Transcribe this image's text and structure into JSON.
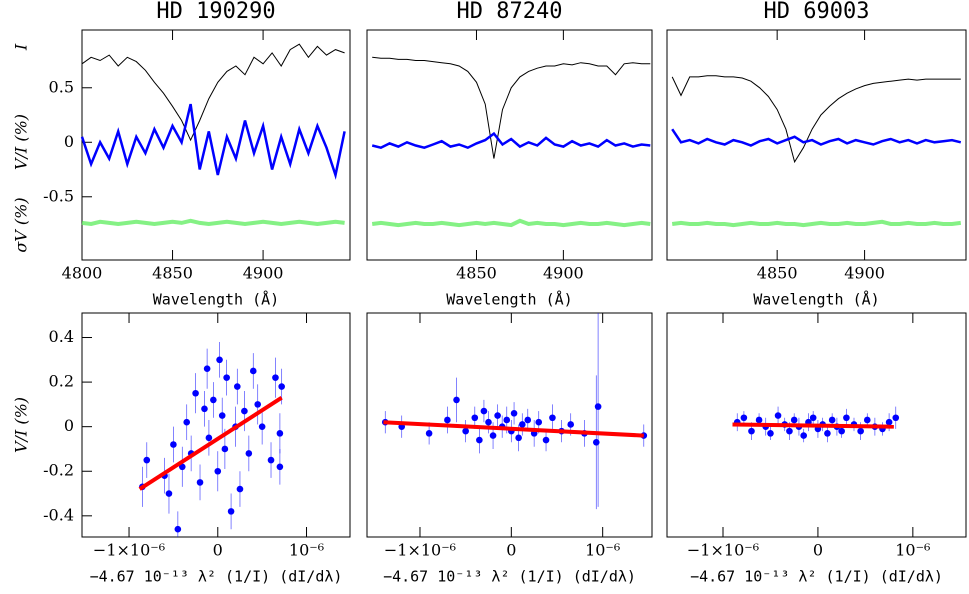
{
  "chart_data": [
    {
      "type": "line",
      "title": "HD 190290",
      "xlabel": "Wavelength (Å)",
      "ylabels": [
        "I",
        "V/I (%)",
        "σV (%)"
      ],
      "xlim": [
        4800,
        4948
      ],
      "ylim": [
        -1.08,
        1.03
      ],
      "xticks": [
        4800,
        4850,
        4900
      ],
      "yticks": [
        0.5,
        0,
        -0.5
      ],
      "x": [
        4800,
        4805,
        4810,
        4815,
        4820,
        4825,
        4830,
        4835,
        4840,
        4845,
        4850,
        4855,
        4860,
        4865,
        4870,
        4875,
        4880,
        4885,
        4890,
        4895,
        4900,
        4905,
        4910,
        4915,
        4920,
        4925,
        4930,
        4935,
        4940,
        4945
      ],
      "series": [
        {
          "color": "#000000",
          "values": [
            0.72,
            0.78,
            0.75,
            0.8,
            0.7,
            0.78,
            0.74,
            0.66,
            0.55,
            0.45,
            0.33,
            0.2,
            0.02,
            0.2,
            0.4,
            0.55,
            0.65,
            0.7,
            0.62,
            0.78,
            0.72,
            0.82,
            0.7,
            0.85,
            0.9,
            0.78,
            0.88,
            0.8,
            0.85,
            0.82
          ]
        },
        {
          "color": "#0000ff",
          "values": [
            0.05,
            -0.2,
            0.0,
            -0.15,
            0.1,
            -0.2,
            0.05,
            -0.1,
            0.12,
            -0.05,
            0.15,
            0.0,
            0.35,
            -0.25,
            0.1,
            -0.3,
            0.05,
            -0.15,
            0.2,
            -0.1,
            0.15,
            -0.25,
            0.05,
            -0.2,
            0.12,
            -0.1,
            0.15,
            -0.05,
            -0.3,
            0.1
          ]
        },
        {
          "color": "#66ee66",
          "values": [
            -0.74,
            -0.75,
            -0.73,
            -0.74,
            -0.75,
            -0.74,
            -0.73,
            -0.74,
            -0.75,
            -0.74,
            -0.73,
            -0.74,
            -0.72,
            -0.74,
            -0.75,
            -0.74,
            -0.73,
            -0.74,
            -0.75,
            -0.74,
            -0.73,
            -0.74,
            -0.75,
            -0.74,
            -0.73,
            -0.74,
            -0.75,
            -0.74,
            -0.73,
            -0.74
          ]
        }
      ]
    },
    {
      "type": "line",
      "title": "HD 87240",
      "xlabel": "Wavelength (Å)",
      "xlim": [
        4787,
        4951
      ],
      "ylim": [
        -1.08,
        1.03
      ],
      "xticks": [
        4850,
        4900
      ],
      "x": [
        4790,
        4795,
        4800,
        4805,
        4810,
        4815,
        4820,
        4825,
        4830,
        4835,
        4840,
        4845,
        4850,
        4855,
        4860,
        4865,
        4870,
        4875,
        4880,
        4885,
        4890,
        4895,
        4900,
        4905,
        4910,
        4915,
        4920,
        4925,
        4930,
        4935,
        4940,
        4945,
        4950
      ],
      "series": [
        {
          "color": "#000000",
          "values": [
            0.78,
            0.77,
            0.77,
            0.76,
            0.76,
            0.75,
            0.75,
            0.74,
            0.73,
            0.72,
            0.7,
            0.65,
            0.55,
            0.35,
            -0.15,
            0.3,
            0.5,
            0.6,
            0.65,
            0.68,
            0.7,
            0.7,
            0.72,
            0.71,
            0.73,
            0.72,
            0.7,
            0.7,
            0.62,
            0.72,
            0.73,
            0.72,
            0.72
          ]
        },
        {
          "color": "#0000ff",
          "values": [
            -0.03,
            -0.05,
            -0.01,
            -0.04,
            0.0,
            -0.03,
            -0.05,
            -0.02,
            0.01,
            -0.04,
            -0.02,
            -0.05,
            -0.01,
            0.02,
            0.08,
            -0.02,
            0.03,
            -0.04,
            0.0,
            -0.03,
            0.04,
            -0.02,
            -0.04,
            0.01,
            -0.03,
            -0.01,
            -0.04,
            0.02,
            -0.03,
            -0.01,
            -0.04,
            -0.02,
            -0.03
          ]
        },
        {
          "color": "#66ee66",
          "values": [
            -0.75,
            -0.74,
            -0.75,
            -0.76,
            -0.75,
            -0.74,
            -0.75,
            -0.75,
            -0.74,
            -0.75,
            -0.76,
            -0.75,
            -0.74,
            -0.75,
            -0.74,
            -0.75,
            -0.76,
            -0.72,
            -0.75,
            -0.74,
            -0.75,
            -0.75,
            -0.76,
            -0.75,
            -0.74,
            -0.75,
            -0.75,
            -0.74,
            -0.75,
            -0.76,
            -0.75,
            -0.74,
            -0.75
          ]
        }
      ]
    },
    {
      "type": "line",
      "title": "HD 69003",
      "xlabel": "Wavelength (Å)",
      "xlim": [
        4787,
        4958
      ],
      "ylim": [
        -1.08,
        1.03
      ],
      "xticks": [
        4850,
        4900
      ],
      "x": [
        4790,
        4795,
        4800,
        4805,
        4810,
        4815,
        4820,
        4825,
        4830,
        4835,
        4840,
        4845,
        4850,
        4855,
        4860,
        4865,
        4870,
        4875,
        4880,
        4885,
        4890,
        4895,
        4900,
        4905,
        4910,
        4915,
        4920,
        4925,
        4930,
        4935,
        4940,
        4945,
        4950,
        4955
      ],
      "series": [
        {
          "color": "#000000",
          "values": [
            0.6,
            0.43,
            0.6,
            0.6,
            0.61,
            0.61,
            0.6,
            0.6,
            0.59,
            0.56,
            0.5,
            0.42,
            0.3,
            0.12,
            -0.18,
            -0.05,
            0.12,
            0.25,
            0.33,
            0.4,
            0.45,
            0.49,
            0.52,
            0.54,
            0.55,
            0.56,
            0.57,
            0.58,
            0.57,
            0.58,
            0.58,
            0.58,
            0.58,
            0.58
          ]
        },
        {
          "color": "#0000ff",
          "values": [
            0.12,
            0.0,
            0.02,
            -0.01,
            0.03,
            0.0,
            -0.02,
            0.02,
            0.0,
            -0.03,
            0.01,
            0.03,
            -0.01,
            0.02,
            0.05,
            0.0,
            0.02,
            -0.02,
            0.01,
            0.03,
            -0.01,
            0.02,
            0.0,
            -0.02,
            0.01,
            0.03,
            0.0,
            0.02,
            -0.01,
            0.02,
            0.0,
            0.01,
            0.02,
            0.0
          ]
        },
        {
          "color": "#66ee66",
          "values": [
            -0.75,
            -0.74,
            -0.75,
            -0.75,
            -0.74,
            -0.75,
            -0.75,
            -0.76,
            -0.75,
            -0.74,
            -0.75,
            -0.75,
            -0.74,
            -0.75,
            -0.75,
            -0.76,
            -0.75,
            -0.74,
            -0.75,
            -0.75,
            -0.74,
            -0.75,
            -0.75,
            -0.74,
            -0.73,
            -0.75,
            -0.75,
            -0.74,
            -0.75,
            -0.75,
            -0.74,
            -0.75,
            -0.75,
            -0.74
          ]
        }
      ]
    },
    {
      "type": "scatter",
      "xlabel": "−4.67 10⁻¹³ λ² (1/I) (dI/dλ)",
      "ylabel": "V/I (%)",
      "color": "#0000ff",
      "xlim": [
        -1.53e-06,
        1.49e-06
      ],
      "ylim": [
        -0.495,
        0.51
      ],
      "xticks": [
        {
          "value": -1e-06,
          "label": "−1×10⁻⁶"
        },
        0,
        {
          "value": 1e-06,
          "label": "10⁻⁶"
        }
      ],
      "yticks": [
        0.4,
        0.2,
        0,
        -0.2,
        -0.4
      ],
      "x": [
        -8.5e-07,
        -8e-07,
        -6e-07,
        -5.5e-07,
        -5e-07,
        -4.5e-07,
        -4e-07,
        -3.5e-07,
        -3e-07,
        -2.5e-07,
        -2e-07,
        -1.5e-07,
        -1.2e-07,
        -1e-07,
        -5e-08,
        0,
        2e-08,
        5e-08,
        8e-08,
        1e-07,
        1.5e-07,
        2e-07,
        2.2e-07,
        2.5e-07,
        3e-07,
        3.5e-07,
        4e-07,
        4.5e-07,
        5e-07,
        6e-07,
        6.5e-07,
        7e-07,
        7.2e-07,
        7e-07
      ],
      "values": [
        -0.27,
        -0.15,
        -0.22,
        -0.3,
        -0.08,
        -0.46,
        -0.18,
        0.02,
        -0.12,
        0.15,
        -0.25,
        0.08,
        0.26,
        -0.05,
        0.12,
        -0.2,
        0.3,
        0.05,
        -0.1,
        0.22,
        -0.38,
        0.0,
        0.18,
        -0.28,
        0.07,
        -0.12,
        0.25,
        0.1,
        0.0,
        -0.15,
        0.22,
        -0.18,
        0.18,
        -0.03
      ],
      "errors": [
        0.09,
        0.08,
        0.08,
        0.09,
        0.08,
        0.08,
        0.09,
        0.08,
        0.08,
        0.09,
        0.08,
        0.08,
        0.09,
        0.08,
        0.08,
        0.09,
        0.08,
        0.08,
        0.09,
        0.08,
        0.08,
        0.09,
        0.08,
        0.08,
        0.09,
        0.08,
        0.08,
        0.09,
        0.08,
        0.08,
        0.09,
        0.08,
        0.08,
        0.09
      ],
      "fit": {
        "color": "#ff0000",
        "x": [
          -8.8e-07,
          7.2e-07
        ],
        "values": [
          -0.28,
          0.13
        ]
      }
    },
    {
      "type": "scatter",
      "xlabel": "−4.67 10⁻¹³ λ² (1/I) (dI/dλ)",
      "color": "#0000ff",
      "xlim": [
        -1.58e-06,
        1.54e-06
      ],
      "ylim": [
        -0.495,
        0.51
      ],
      "xticks": [
        {
          "value": -1e-06,
          "label": "−1×10⁻⁶"
        },
        0,
        {
          "value": 1e-06,
          "label": "10⁻⁶"
        }
      ],
      "x": [
        -1.38e-06,
        -1.2e-06,
        -9e-07,
        -7e-07,
        -6e-07,
        -5e-07,
        -4e-07,
        -3.5e-07,
        -3e-07,
        -2.5e-07,
        -2e-07,
        -1.5e-07,
        -1e-07,
        -5e-08,
        0,
        3e-08,
        8e-08,
        1.2e-07,
        1.8e-07,
        2.5e-07,
        3e-07,
        3.8e-07,
        4.5e-07,
        5.5e-07,
        6.5e-07,
        8e-07,
        9.3e-07,
        9.5e-07,
        1.45e-06
      ],
      "values": [
        0.02,
        0.0,
        -0.03,
        0.03,
        0.12,
        -0.02,
        0.04,
        -0.06,
        0.07,
        0.02,
        -0.04,
        0.05,
        0.0,
        0.03,
        -0.02,
        0.06,
        -0.05,
        0.01,
        0.03,
        -0.03,
        0.02,
        -0.06,
        0.04,
        -0.02,
        0.01,
        -0.03,
        -0.07,
        0.09,
        -0.04
      ],
      "errors": [
        0.05,
        0.05,
        0.05,
        0.06,
        0.1,
        0.05,
        0.05,
        0.06,
        0.05,
        0.05,
        0.06,
        0.05,
        0.05,
        0.06,
        0.05,
        0.05,
        0.06,
        0.05,
        0.05,
        0.06,
        0.05,
        0.05,
        0.06,
        0.05,
        0.05,
        0.06,
        0.3,
        0.45,
        0.05
      ],
      "fit": {
        "color": "#ff0000",
        "x": [
          -1.4e-06,
          1.45e-06
        ],
        "values": [
          0.02,
          -0.04
        ]
      }
    },
    {
      "type": "scatter",
      "xlabel": "−4.67 10⁻¹³ λ² (1/I) (dI/dλ)",
      "color": "#0000ff",
      "xlim": [
        -1.59e-06,
        1.56e-06
      ],
      "ylim": [
        -0.495,
        0.51
      ],
      "xticks": [
        {
          "value": -1e-06,
          "label": "−1×10⁻⁶"
        },
        0,
        {
          "value": 1e-06,
          "label": "10⁻⁶"
        }
      ],
      "x": [
        -8.5e-07,
        -7.8e-07,
        -7e-07,
        -6.2e-07,
        -5.5e-07,
        -5e-07,
        -4.2e-07,
        -3.5e-07,
        -3e-07,
        -2.5e-07,
        -2e-07,
        -1.5e-07,
        -1e-07,
        -5e-08,
        0,
        5e-08,
        1e-07,
        1.5e-07,
        2e-07,
        2.5e-07,
        3e-07,
        3.8e-07,
        4.5e-07,
        5.2e-07,
        6e-07,
        6.8e-07,
        7.5e-07,
        8.2e-07
      ],
      "values": [
        0.02,
        0.04,
        -0.02,
        0.03,
        0.0,
        -0.03,
        0.05,
        0.01,
        -0.02,
        0.03,
        0.0,
        -0.04,
        0.02,
        0.04,
        -0.01,
        0.01,
        -0.03,
        0.03,
        0.0,
        -0.02,
        0.04,
        0.01,
        -0.02,
        0.03,
        0.0,
        -0.01,
        0.02,
        0.04
      ],
      "errors": [
        0.04,
        0.03,
        0.04,
        0.03,
        0.04,
        0.03,
        0.04,
        0.03,
        0.04,
        0.03,
        0.04,
        0.03,
        0.04,
        0.03,
        0.04,
        0.03,
        0.04,
        0.03,
        0.04,
        0.03,
        0.04,
        0.03,
        0.04,
        0.03,
        0.04,
        0.03,
        0.04,
        0.05
      ],
      "fit": {
        "color": "#ff0000",
        "x": [
          -9e-07,
          8e-07
        ],
        "values": [
          0.01,
          0.0
        ]
      }
    }
  ]
}
